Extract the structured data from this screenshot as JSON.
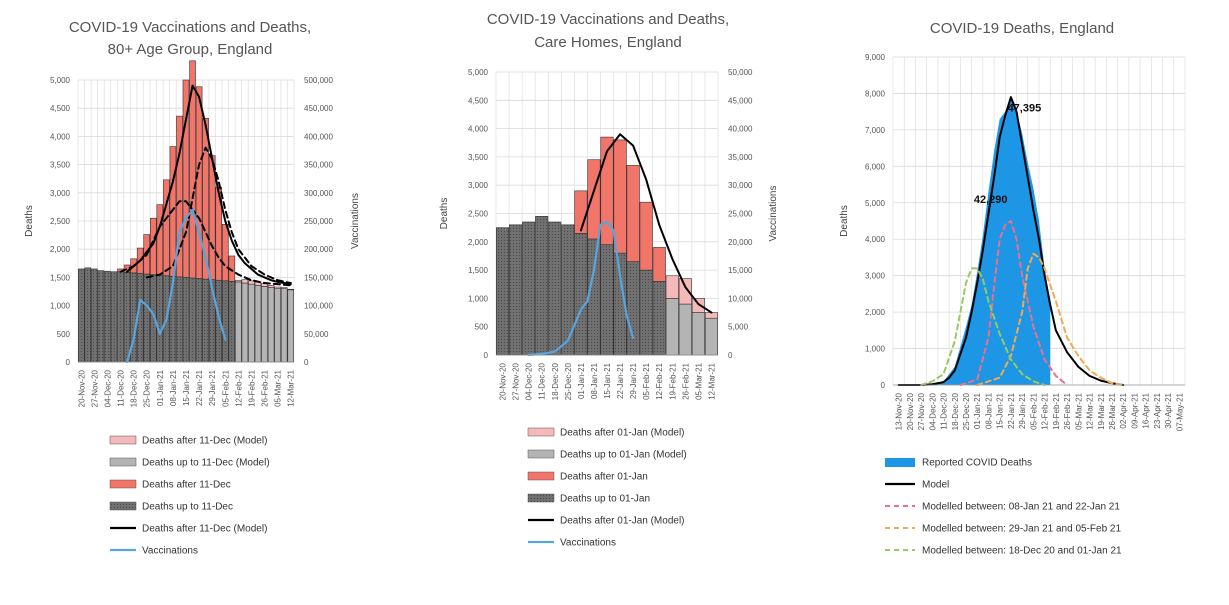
{
  "colors": {
    "dark_bar": "#707070",
    "mid_bar": "#b4b4b4",
    "salmon": "#f2756a",
    "pink": "#f5b9b9",
    "model": "#000000",
    "vacc": "#58a4dc",
    "area_blue": "#1e96e6",
    "red_dash": "#e8708c",
    "orange_dash": "#f2a950",
    "green_dash": "#98c964",
    "grid": "#d9d9d9"
  },
  "chart_data": [
    {
      "id": "c1",
      "type": "bar",
      "title": [
        "COVID-19 Vaccinations and Deaths,",
        "80+ Age Group, England"
      ],
      "ylabel": "Deaths",
      "y2label": "Vaccinations",
      "ylim": [
        0,
        5000
      ],
      "y2lim": [
        0,
        500000
      ],
      "yticks": [
        "0",
        "500",
        "1,000",
        "1,500",
        "2,000",
        "2,500",
        "3,000",
        "3,500",
        "4,000",
        "4,500",
        "5,000"
      ],
      "y2ticks": [
        "0",
        "50,000",
        "100,000",
        "150,000",
        "200,000",
        "250,000",
        "300,000",
        "350,000",
        "400,000",
        "450,000",
        "500,000"
      ],
      "categories": [
        "20-Nov-20",
        "",
        "27-Nov-20",
        "",
        "04-Dec-20",
        "",
        "11-Dec-20",
        "",
        "18-Dec-20",
        "",
        "25-Dec-20",
        "",
        "01-Jan-21",
        "",
        "08-Jan-21",
        "",
        "15-Jan-21",
        "",
        "22-Jan-21",
        "",
        "29-Jan-21",
        "",
        "05-Feb-21",
        "",
        "12-Feb-21",
        "",
        "19-Feb-21",
        "",
        "26-Feb-21",
        "",
        "05-Mar-21",
        "",
        "12-Mar-21"
      ],
      "series": [
        {
          "name": "Deaths after 11-Dec (Model)",
          "kind": "bar",
          "style": "pink",
          "values": [
            0,
            0,
            0,
            0,
            0,
            0,
            0,
            0,
            0,
            0,
            0,
            0,
            0,
            0,
            0,
            0,
            0,
            0,
            0,
            0,
            0,
            0,
            0,
            0,
            30,
            60,
            60,
            60,
            50,
            40,
            30,
            20,
            10
          ]
        },
        {
          "name": "Deaths up to 11-Dec (Model)",
          "kind": "bar",
          "style": "mid",
          "values": [
            0,
            0,
            0,
            0,
            0,
            0,
            0,
            0,
            0,
            0,
            0,
            0,
            0,
            0,
            0,
            0,
            0,
            0,
            0,
            0,
            0,
            0,
            0,
            0,
            1420,
            1400,
            1380,
            1360,
            1340,
            1320,
            1300,
            1300,
            1280
          ]
        },
        {
          "name": "Deaths after 11-Dec",
          "kind": "bar",
          "style": "salmon",
          "values": [
            0,
            0,
            0,
            0,
            0,
            0,
            50,
            130,
            250,
            450,
            700,
            1000,
            1250,
            1700,
            2300,
            2850,
            3500,
            3850,
            3400,
            2850,
            2200,
            1650,
            1000,
            450,
            0,
            0,
            0,
            0,
            0,
            0,
            0,
            0,
            0
          ]
        },
        {
          "name": "Deaths up to 11-Dec",
          "kind": "bar",
          "style": "dark",
          "values": [
            1650,
            1670,
            1650,
            1620,
            1610,
            1600,
            1600,
            1590,
            1580,
            1570,
            1560,
            1550,
            1540,
            1530,
            1520,
            1510,
            1500,
            1490,
            1480,
            1470,
            1460,
            1450,
            1440,
            1430,
            0,
            0,
            0,
            0,
            0,
            0,
            0,
            0,
            0
          ]
        },
        {
          "name": "Deaths after 11-Dec (Model)",
          "kind": "line",
          "style": "model",
          "x": [
            7,
            8,
            9,
            10,
            11,
            12,
            13,
            14,
            15,
            16,
            17,
            18,
            19,
            20,
            21,
            22,
            23,
            24,
            25,
            26,
            27,
            28,
            29,
            30,
            31,
            32
          ],
          "values": [
            1600,
            1700,
            1800,
            1950,
            2100,
            2400,
            2800,
            3200,
            3700,
            4300,
            4900,
            4700,
            4200,
            3600,
            3000,
            2500,
            2150,
            1900,
            1750,
            1650,
            1550,
            1500,
            1450,
            1420,
            1400,
            1380
          ]
        },
        {
          "name": "",
          "kind": "dash",
          "style": "model",
          "x": [
            6,
            8,
            10,
            12,
            14,
            15,
            16,
            17,
            18,
            19,
            20,
            21,
            22,
            24,
            26,
            28,
            30,
            32
          ],
          "values": [
            1600,
            1700,
            1900,
            2400,
            2700,
            2850,
            2850,
            2700,
            2550,
            2300,
            2050,
            1850,
            1700,
            1550,
            1450,
            1400,
            1380,
            1360
          ]
        },
        {
          "name": "",
          "kind": "dash",
          "style": "model",
          "x": [
            10,
            12,
            14,
            16,
            17,
            18,
            19,
            20,
            21,
            22,
            23,
            24,
            26,
            28,
            30,
            32
          ],
          "values": [
            1500,
            1550,
            1700,
            2300,
            2900,
            3500,
            3800,
            3600,
            3200,
            2700,
            2300,
            2000,
            1700,
            1550,
            1450,
            1400
          ]
        },
        {
          "name": "Vaccinations",
          "kind": "line",
          "style": "vacc",
          "axis": "y2",
          "x": [
            7,
            8,
            9,
            10,
            11,
            12,
            13,
            14,
            15,
            16,
            17,
            18,
            19,
            20,
            21,
            22
          ],
          "values": [
            0,
            40000,
            110000,
            100000,
            85000,
            50000,
            75000,
            140000,
            230000,
            255000,
            270000,
            230000,
            185000,
            130000,
            80000,
            40000
          ]
        }
      ],
      "legend": [
        {
          "label": "Deaths after 11-Dec (Model)",
          "swatch": "pink"
        },
        {
          "label": "Deaths up to 11-Dec (Model)",
          "swatch": "mid"
        },
        {
          "label": "Deaths after 11-Dec",
          "swatch": "salmon"
        },
        {
          "label": "Deaths up to 11-Dec",
          "swatch": "dark"
        },
        {
          "label": "Deaths after 11-Dec (Model)",
          "swatch": "line-model"
        },
        {
          "label": "Vaccinations",
          "swatch": "line-vacc"
        }
      ]
    },
    {
      "id": "c2",
      "type": "bar",
      "title": [
        "COVID-19 Vaccinations and Deaths,",
        "Care Homes, England"
      ],
      "ylabel": "Deaths",
      "y2label": "Vaccinations",
      "ylim": [
        0,
        5000
      ],
      "y2lim": [
        0,
        50000
      ],
      "yticks": [
        "0",
        "500",
        "1,000",
        "1,500",
        "2,000",
        "2,500",
        "3,000",
        "3,500",
        "4,000",
        "4,500",
        "5,000"
      ],
      "y2ticks": [
        "0",
        "5,000",
        "10,000",
        "15,000",
        "20,000",
        "25,000",
        "30,000",
        "35,000",
        "40,000",
        "45,000",
        "50,000"
      ],
      "categories": [
        "20-Nov-20",
        "27-Nov-20",
        "04-Dec-20",
        "11-Dec-20",
        "18-Dec-20",
        "25-Dec-20",
        "01-Jan-21",
        "08-Jan-21",
        "15-Jan-21",
        "22-Jan-21",
        "29-Jan-21",
        "05-Feb-21",
        "12-Feb-21",
        "19-Feb-21",
        "26-Feb-21",
        "05-Mar-21",
        "12-Mar-21"
      ],
      "series": [
        {
          "name": "Deaths after 01-Jan (Model)",
          "kind": "bar",
          "style": "pink",
          "values": [
            0,
            0,
            0,
            0,
            0,
            0,
            0,
            0,
            0,
            0,
            0,
            0,
            0,
            400,
            450,
            250,
            100
          ]
        },
        {
          "name": "Deaths up to 01-Jan (Model)",
          "kind": "bar",
          "style": "mid",
          "values": [
            0,
            0,
            0,
            0,
            0,
            0,
            0,
            0,
            0,
            0,
            0,
            0,
            0,
            1000,
            900,
            750,
            650
          ]
        },
        {
          "name": "Deaths after 01-Jan",
          "kind": "bar",
          "style": "salmon",
          "values": [
            0,
            0,
            0,
            0,
            0,
            0,
            750,
            1400,
            1900,
            2000,
            1700,
            1200,
            600,
            0,
            0,
            0,
            0
          ]
        },
        {
          "name": "Deaths up to 01-Jan",
          "kind": "bar",
          "style": "dark",
          "values": [
            2250,
            2300,
            2350,
            2450,
            2350,
            2300,
            2150,
            2050,
            1950,
            1800,
            1650,
            1500,
            1300,
            0,
            0,
            0,
            0
          ]
        },
        {
          "name": "Deaths after 01-Jan (Model)",
          "kind": "line",
          "style": "model",
          "x": [
            6,
            7,
            8,
            9,
            10,
            11,
            12,
            13,
            14,
            15,
            16
          ],
          "values": [
            2200,
            2900,
            3600,
            3900,
            3700,
            3100,
            2300,
            1700,
            1200,
            900,
            750
          ]
        },
        {
          "name": "Vaccinations",
          "kind": "line",
          "style": "vacc",
          "axis": "y2",
          "x": [
            2,
            3,
            4,
            5,
            6,
            6.5,
            7,
            7.5,
            8,
            8.5,
            9,
            9.5,
            10
          ],
          "values": [
            0,
            200,
            600,
            2500,
            8000,
            9500,
            15000,
            23000,
            23500,
            22000,
            14000,
            7000,
            3000
          ]
        }
      ],
      "legend": [
        {
          "label": "Deaths after 01-Jan (Model)",
          "swatch": "pink"
        },
        {
          "label": "Deaths up to 01-Jan (Model)",
          "swatch": "mid"
        },
        {
          "label": "Deaths after 01-Jan",
          "swatch": "salmon"
        },
        {
          "label": "Deaths up to 01-Jan",
          "swatch": "dark"
        },
        {
          "label": "Deaths after 01-Jan (Model)",
          "swatch": "line-model"
        },
        {
          "label": "Vaccinations",
          "swatch": "line-vacc"
        }
      ]
    },
    {
      "id": "c3",
      "type": "area",
      "title": [
        "COVID-19 Deaths, England"
      ],
      "ylabel": "Deaths",
      "ylim": [
        0,
        9000
      ],
      "yticks": [
        "0",
        "1,000",
        "2,000",
        "3,000",
        "4,000",
        "5,000",
        "6,000",
        "7,000",
        "8,000",
        "9,000"
      ],
      "categories": [
        "13-Nov-20",
        "20-Nov-20",
        "27-Nov-20",
        "04-Dec-20",
        "11-Dec-20",
        "18-Dec-20",
        "25-Dec-20",
        "01-Jan-21",
        "08-Jan-21",
        "15-Jan-21",
        "22-Jan-21",
        "29-Jan-21",
        "05-Feb-21",
        "12-Feb-21",
        "19-Feb-21",
        "26-Feb-21",
        "05-Mar-21",
        "12-Mar-21",
        "19-Mar-21",
        "26-Mar-21",
        "02-Apr-21",
        "09-Apr-21",
        "16-Apr-21",
        "23-Apr-21",
        "30-Apr-21",
        "07-May-21"
      ],
      "series": [
        {
          "name": "Reported COVID Deaths",
          "kind": "area",
          "style": "area_blue",
          "x": [
            0,
            1,
            2,
            2.5,
            3,
            3.5,
            4,
            5,
            6,
            6.5,
            7,
            7.5,
            8,
            8.5,
            9,
            9.5,
            10,
            10.5,
            11,
            11.5,
            12,
            12.5,
            13,
            13.5
          ],
          "values": [
            0,
            0,
            0,
            10,
            20,
            50,
            100,
            500,
            1600,
            2200,
            3100,
            4100,
            5300,
            6400,
            7300,
            7500,
            7900,
            7500,
            6900,
            6100,
            5400,
            4500,
            3200,
            2300
          ]
        },
        {
          "name": "Model",
          "kind": "line",
          "style": "model",
          "x": [
            0,
            2,
            3,
            4,
            4.5,
            5,
            6,
            6.5,
            7,
            7.5,
            8,
            8.5,
            9,
            9.5,
            10,
            10.5,
            11,
            11.5,
            12,
            12.5,
            13,
            13.5,
            14,
            15,
            16,
            17,
            18,
            19,
            20
          ],
          "values": [
            0,
            0,
            20,
            80,
            200,
            400,
            1300,
            2000,
            2800,
            3700,
            4700,
            5700,
            6800,
            7400,
            7900,
            7500,
            6600,
            5700,
            4800,
            4000,
            3000,
            2200,
            1500,
            900,
            500,
            250,
            120,
            50,
            0
          ]
        },
        {
          "name": "Modelled between: 08-Jan 21 and 22-Jan 21",
          "kind": "dash",
          "style": "red_dash",
          "x": [
            5.5,
            7,
            8,
            8.5,
            9,
            9.5,
            10,
            10.5,
            11,
            12,
            13,
            14,
            15
          ],
          "values": [
            0,
            150,
            1300,
            2700,
            4000,
            4400,
            4500,
            4000,
            3000,
            1600,
            700,
            250,
            0
          ]
        },
        {
          "name": "Modelled between: 29-Jan 21 and 05-Feb 21",
          "kind": "dash",
          "style": "orange_dash",
          "x": [
            7,
            9,
            10,
            11,
            11.5,
            12,
            12.5,
            13,
            14,
            15,
            16,
            17,
            18,
            19,
            20
          ],
          "values": [
            0,
            200,
            800,
            2000,
            3200,
            3600,
            3500,
            3200,
            2300,
            1300,
            800,
            400,
            200,
            50,
            0
          ]
        },
        {
          "name": "Modelled between: 18-Dec 20 and 01-Jan 21",
          "kind": "dash",
          "style": "green_dash",
          "x": [
            2,
            3,
            4,
            5,
            6,
            6.5,
            7,
            7.5,
            8,
            9,
            10,
            11,
            12,
            13
          ],
          "values": [
            0,
            100,
            300,
            1200,
            2800,
            3200,
            3200,
            2900,
            2300,
            1400,
            700,
            300,
            100,
            0
          ]
        }
      ],
      "annotations": [
        {
          "text": "47,395",
          "x": 11.2,
          "y": 7500
        },
        {
          "text": "42,290",
          "x": 8.2,
          "y": 5000
        }
      ],
      "legend": [
        {
          "label": "Reported COVID Deaths",
          "swatch": "rect-blue"
        },
        {
          "label": "Model",
          "swatch": "line-model"
        },
        {
          "label": "Modelled between: 08-Jan 21 and 22-Jan 21",
          "swatch": "dash-red"
        },
        {
          "label": "Modelled between: 29-Jan 21 and 05-Feb 21",
          "swatch": "dash-orange"
        },
        {
          "label": "Modelled between: 18-Dec 20 and 01-Jan 21",
          "swatch": "dash-green"
        }
      ]
    }
  ]
}
